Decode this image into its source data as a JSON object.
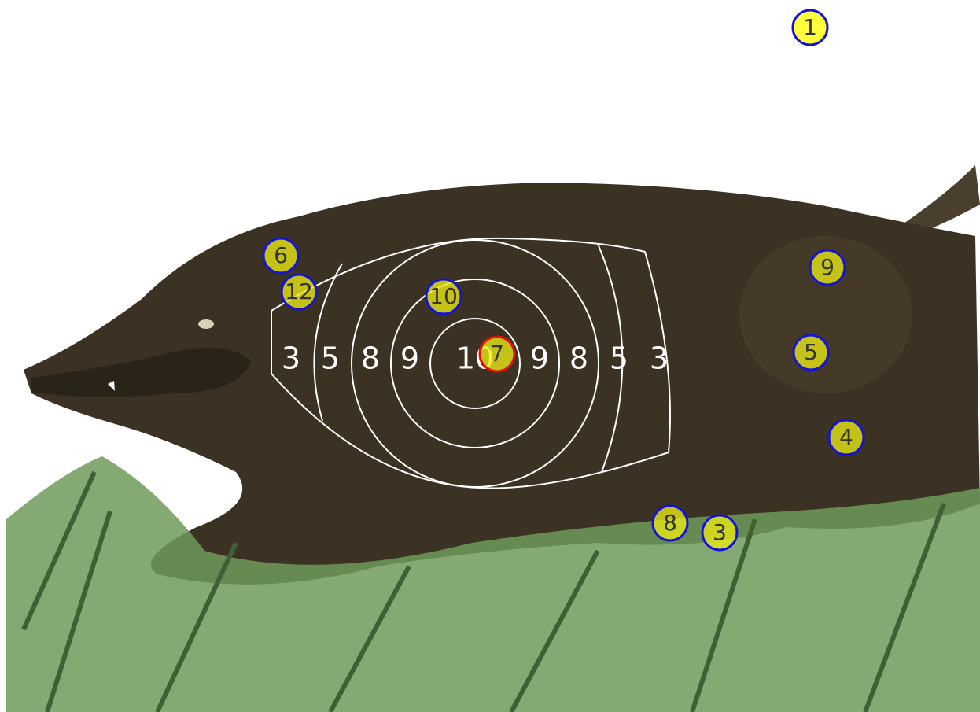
{
  "target": {
    "ring_labels": [
      "3",
      "5",
      "8",
      "9",
      "10",
      "9",
      "8",
      "5",
      "3"
    ],
    "shots": [
      "1",
      "6",
      "12",
      "10",
      "7",
      "9",
      "5",
      "4",
      "8",
      "3"
    ]
  }
}
